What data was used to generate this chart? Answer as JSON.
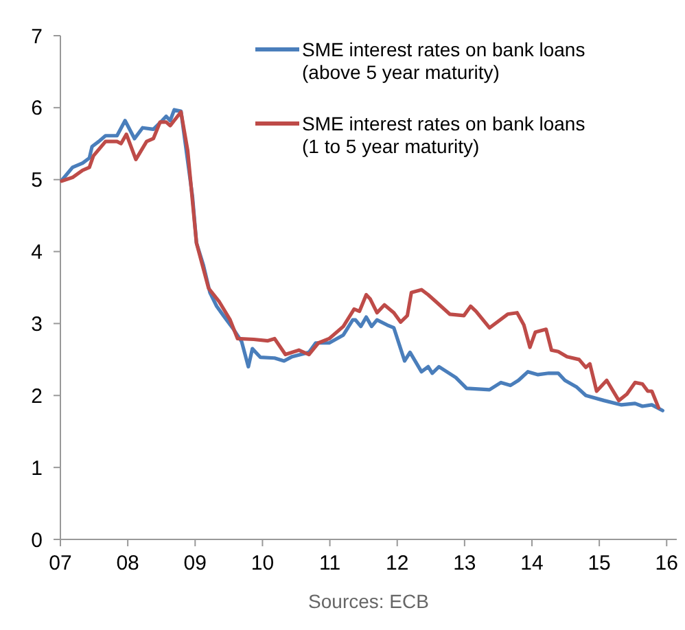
{
  "chart_data": {
    "type": "line",
    "xlim": [
      7,
      16.15
    ],
    "xticks": [
      {
        "value": 7,
        "label": "07"
      },
      {
        "value": 8,
        "label": "08"
      },
      {
        "value": 9,
        "label": "09"
      },
      {
        "value": 10,
        "label": "10"
      },
      {
        "value": 11,
        "label": "11"
      },
      {
        "value": 12,
        "label": "12"
      },
      {
        "value": 13,
        "label": "13"
      },
      {
        "value": 14,
        "label": "14"
      },
      {
        "value": 15,
        "label": "15"
      },
      {
        "value": 16,
        "label": "16"
      }
    ],
    "ylim": [
      0,
      7
    ],
    "yticks": [
      0,
      1,
      2,
      3,
      4,
      5,
      6,
      7
    ],
    "grid": false,
    "legend": "top right",
    "marker": "none",
    "line_style": "solid",
    "annotations": [
      "Sources: ECB"
    ],
    "series": [
      {
        "name": "SME interest rates on bank loans (above 5 year maturity)",
        "color": "#4a7ebb",
        "x": [
          7.02,
          7.18,
          7.33,
          7.43,
          7.47,
          7.57,
          7.67,
          7.84,
          7.96,
          8.1,
          8.22,
          8.38,
          8.51,
          8.57,
          8.63,
          8.69,
          8.79,
          8.96,
          9.02,
          9.12,
          9.22,
          9.32,
          9.42,
          9.57,
          9.69,
          9.79,
          9.85,
          9.97,
          10.18,
          10.32,
          10.44,
          10.69,
          10.79,
          10.99,
          11.2,
          11.34,
          11.38,
          11.46,
          11.54,
          11.62,
          11.7,
          11.85,
          11.95,
          12.11,
          12.19,
          12.36,
          12.46,
          12.52,
          12.62,
          12.87,
          13.03,
          13.37,
          13.54,
          13.68,
          13.8,
          13.94,
          14.09,
          14.25,
          14.39,
          14.49,
          14.66,
          14.8,
          15.07,
          15.33,
          15.53,
          15.64,
          15.78,
          15.94
        ],
        "values": [
          4.99,
          5.17,
          5.23,
          5.3,
          5.46,
          5.53,
          5.61,
          5.61,
          5.82,
          5.57,
          5.72,
          5.7,
          5.82,
          5.88,
          5.82,
          5.97,
          5.95,
          4.77,
          4.12,
          3.82,
          3.43,
          3.24,
          3.11,
          2.92,
          2.75,
          2.4,
          2.65,
          2.53,
          2.52,
          2.48,
          2.54,
          2.6,
          2.73,
          2.73,
          2.84,
          3.05,
          3.05,
          2.96,
          3.09,
          2.96,
          3.05,
          2.98,
          2.94,
          2.48,
          2.6,
          2.33,
          2.4,
          2.31,
          2.4,
          2.25,
          2.1,
          2.08,
          2.18,
          2.14,
          2.21,
          2.33,
          2.29,
          2.31,
          2.31,
          2.21,
          2.12,
          2.0,
          1.93,
          1.87,
          1.89,
          1.85,
          1.87,
          1.79
        ]
      },
      {
        "name": "SME interest rates on bank loans (1 to 5 year maturity)",
        "color": "#be4b48",
        "x": [
          7.02,
          7.18,
          7.33,
          7.43,
          7.49,
          7.67,
          7.84,
          7.9,
          7.98,
          8.12,
          8.28,
          8.38,
          8.48,
          8.57,
          8.63,
          8.79,
          8.89,
          9.02,
          9.2,
          9.36,
          9.52,
          9.63,
          9.87,
          10.08,
          10.18,
          10.34,
          10.54,
          10.69,
          10.83,
          10.99,
          11.2,
          11.36,
          11.44,
          11.54,
          11.6,
          11.7,
          11.81,
          11.95,
          12.05,
          12.15,
          12.21,
          12.36,
          12.46,
          12.58,
          12.78,
          12.99,
          13.09,
          13.17,
          13.37,
          13.64,
          13.78,
          13.88,
          13.97,
          14.05,
          14.21,
          14.29,
          14.39,
          14.52,
          14.7,
          14.8,
          14.86,
          14.96,
          15.11,
          15.29,
          15.41,
          15.53,
          15.64,
          15.72,
          15.78,
          15.88
        ],
        "values": [
          4.98,
          5.03,
          5.13,
          5.17,
          5.33,
          5.53,
          5.53,
          5.5,
          5.63,
          5.28,
          5.53,
          5.57,
          5.8,
          5.8,
          5.75,
          5.94,
          5.4,
          4.12,
          3.49,
          3.3,
          3.05,
          2.79,
          2.78,
          2.76,
          2.79,
          2.57,
          2.63,
          2.57,
          2.73,
          2.79,
          2.96,
          3.2,
          3.17,
          3.4,
          3.34,
          3.15,
          3.26,
          3.15,
          3.02,
          3.11,
          3.43,
          3.47,
          3.4,
          3.3,
          3.13,
          3.11,
          3.24,
          3.17,
          2.94,
          3.13,
          3.15,
          2.98,
          2.67,
          2.88,
          2.92,
          2.63,
          2.61,
          2.54,
          2.5,
          2.39,
          2.44,
          2.06,
          2.21,
          1.93,
          2.02,
          2.18,
          2.16,
          2.06,
          2.06,
          1.83
        ]
      }
    ]
  }
}
